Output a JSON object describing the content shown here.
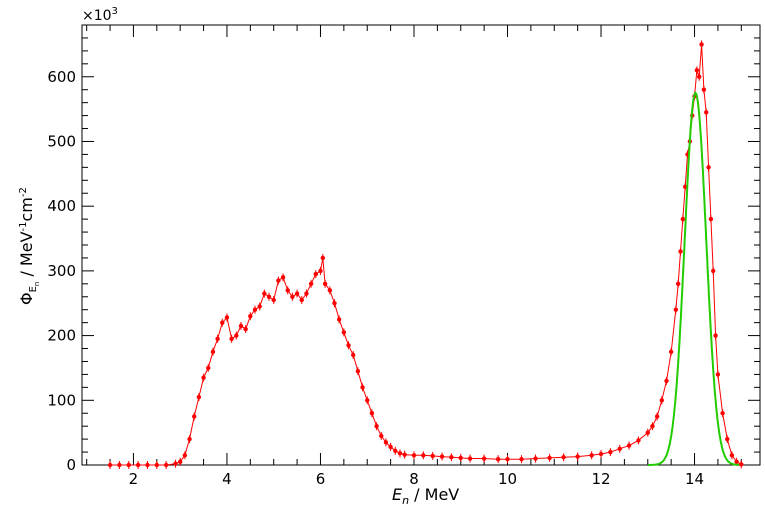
{
  "chart_data": {
    "type": "line",
    "title": "",
    "xlabel": {
      "symbol": "E",
      "subscript": "n",
      "unit": " / MeV"
    },
    "ylabel": {
      "symbol": "Φ",
      "subscript": "E",
      "subsubscript": "n",
      "unit_prefix": " / MeV",
      "unit_exp1": "-1",
      "unit_mid": "cm",
      "unit_exp2": "-2"
    },
    "y_multiplier": {
      "base": "×10",
      "exponent": "3"
    },
    "xlim": [
      0.9,
      15.4
    ],
    "ylim": [
      0,
      680
    ],
    "x_ticks": [
      2,
      4,
      6,
      8,
      10,
      12,
      14
    ],
    "y_ticks": [
      0,
      100,
      200,
      300,
      400,
      500,
      600
    ],
    "x_tick_labels": [
      "2",
      "4",
      "6",
      "8",
      "10",
      "12",
      "14"
    ],
    "y_tick_labels": [
      "0",
      "100",
      "200",
      "300",
      "400",
      "500",
      "600"
    ],
    "grid": false,
    "legend": "none",
    "series": [
      {
        "style": "markers-with-line",
        "color": "#ff0000",
        "x": [
          1.5,
          1.7,
          1.9,
          2.1,
          2.3,
          2.5,
          2.7,
          2.9,
          3.0,
          3.1,
          3.2,
          3.3,
          3.4,
          3.5,
          3.6,
          3.7,
          3.8,
          3.9,
          4.0,
          4.1,
          4.2,
          4.3,
          4.4,
          4.5,
          4.6,
          4.7,
          4.8,
          4.9,
          5.0,
          5.1,
          5.2,
          5.3,
          5.4,
          5.5,
          5.6,
          5.7,
          5.8,
          5.9,
          6.0,
          6.05,
          6.1,
          6.2,
          6.3,
          6.4,
          6.5,
          6.6,
          6.7,
          6.8,
          6.9,
          7.0,
          7.1,
          7.2,
          7.3,
          7.4,
          7.5,
          7.6,
          7.7,
          7.8,
          8.0,
          8.2,
          8.4,
          8.6,
          8.8,
          9.0,
          9.2,
          9.5,
          9.8,
          10.0,
          10.3,
          10.6,
          10.9,
          11.2,
          11.5,
          11.8,
          12.0,
          12.2,
          12.4,
          12.6,
          12.8,
          13.0,
          13.1,
          13.2,
          13.3,
          13.4,
          13.5,
          13.6,
          13.65,
          13.7,
          13.75,
          13.8,
          13.85,
          13.9,
          13.95,
          14.0,
          14.05,
          14.1,
          14.15,
          14.2,
          14.25,
          14.3,
          14.35,
          14.4,
          14.45,
          14.5,
          14.6,
          14.7,
          14.8,
          14.9,
          15.0
        ],
        "y": [
          0,
          0,
          0,
          0,
          0,
          0,
          0,
          2,
          5,
          15,
          40,
          75,
          105,
          135,
          150,
          175,
          195,
          220,
          228,
          195,
          200,
          215,
          210,
          230,
          240,
          245,
          265,
          260,
          255,
          285,
          290,
          270,
          260,
          265,
          255,
          265,
          280,
          295,
          300,
          320,
          280,
          270,
          250,
          225,
          205,
          185,
          170,
          145,
          120,
          100,
          80,
          60,
          45,
          35,
          28,
          22,
          18,
          16,
          15,
          15,
          14,
          13,
          12,
          11,
          10,
          10,
          9,
          9,
          9,
          10,
          11,
          12,
          13,
          15,
          17,
          20,
          25,
          30,
          38,
          50,
          60,
          75,
          100,
          130,
          175,
          240,
          280,
          330,
          380,
          430,
          480,
          500,
          540,
          570,
          610,
          600,
          650,
          580,
          545,
          460,
          380,
          300,
          200,
          140,
          80,
          40,
          15,
          5,
          1
        ]
      },
      {
        "style": "line",
        "color": "#22cc00",
        "fit": {
          "mean": 14.02,
          "sigma": 0.23,
          "amplitude": 575,
          "x_start": 13.0,
          "x_end": 14.95
        }
      }
    ]
  }
}
